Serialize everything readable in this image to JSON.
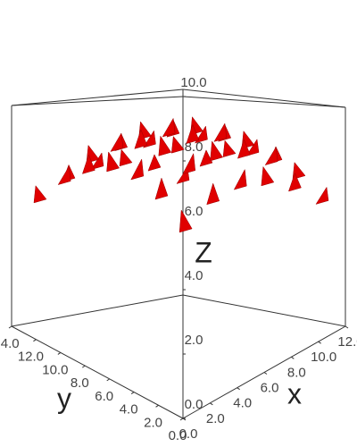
{
  "chart_data": {
    "type": "cone",
    "x_label": "x",
    "y_label": "y",
    "z_label": "Z",
    "color": "#e00000",
    "x": [
      2,
      2,
      2,
      2,
      2,
      2,
      2,
      4,
      4,
      4,
      4,
      4,
      4,
      4,
      6,
      6,
      6,
      6,
      6,
      6,
      6,
      8,
      8,
      8,
      8,
      8,
      8,
      8,
      10,
      10,
      10,
      10,
      10,
      10,
      10,
      12,
      12,
      12,
      12,
      12,
      12,
      12
    ],
    "y": [
      2,
      4,
      6,
      8,
      10,
      12,
      14,
      2,
      4,
      6,
      8,
      10,
      12,
      14,
      2,
      4,
      6,
      8,
      10,
      12,
      14,
      2,
      4,
      6,
      8,
      10,
      12,
      14,
      2,
      4,
      6,
      8,
      10,
      12,
      14,
      2,
      4,
      6,
      8,
      10,
      12,
      14
    ],
    "z": [
      5.5,
      6.5,
      7.1,
      7.3,
      7.1,
      6.5,
      5.5,
      6.3,
      7.3,
      7.9,
      8.1,
      7.9,
      7.3,
      6.3,
      6.7,
      7.7,
      8.3,
      8.5,
      8.3,
      7.7,
      6.7,
      6.7,
      7.7,
      8.3,
      8.5,
      8.3,
      7.7,
      6.7,
      6.3,
      7.3,
      7.9,
      8.1,
      7.9,
      7.3,
      6.3,
      5.5,
      6.5,
      7.1,
      7.3,
      7.1,
      6.5,
      5.5
    ],
    "xlim": [
      0,
      12
    ],
    "ylim": [
      0,
      14
    ],
    "zlim": [
      0,
      10
    ],
    "xticks": [
      {
        "value": 0,
        "label": "0.0"
      },
      {
        "value": 2,
        "label": "2.0"
      },
      {
        "value": 4,
        "label": "4.0"
      },
      {
        "value": 6,
        "label": "6.0"
      },
      {
        "value": 8,
        "label": "8.0"
      },
      {
        "value": 10,
        "label": "10.0"
      },
      {
        "value": 12,
        "label": "12.0"
      }
    ],
    "yticks": [
      {
        "value": 0,
        "label": "0.0"
      },
      {
        "value": 2,
        "label": "2.0"
      },
      {
        "value": 4,
        "label": "4.0"
      },
      {
        "value": 6,
        "label": "6.0"
      },
      {
        "value": 8,
        "label": "8.0"
      },
      {
        "value": 10,
        "label": "10.0"
      },
      {
        "value": 12,
        "label": "12.0"
      },
      {
        "value": 14,
        "label": "14.0"
      }
    ],
    "zticks": [
      {
        "value": 0,
        "label": "0.0"
      },
      {
        "value": 2,
        "label": "2.0"
      },
      {
        "value": 4,
        "label": "4.0"
      },
      {
        "value": 6,
        "label": "6.0"
      },
      {
        "value": 8,
        "label": "8.0"
      },
      {
        "value": 10,
        "label": "10.0"
      }
    ]
  }
}
